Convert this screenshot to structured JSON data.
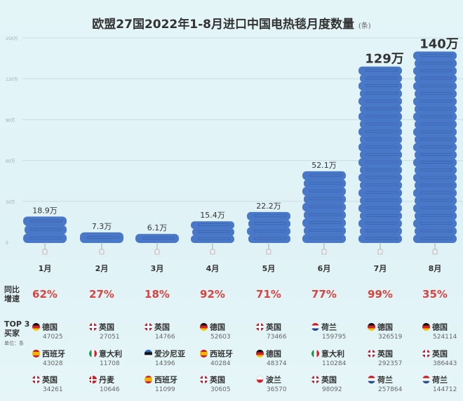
{
  "chart_data": {
    "type": "bar",
    "title": "欧盟27国2022年1-8月进口中国电热毯月度数量",
    "title_unit": "(条)",
    "categories": [
      "1月",
      "2月",
      "3月",
      "4月",
      "5月",
      "6月",
      "7月",
      "8月"
    ],
    "values": [
      18.9,
      7.3,
      6.1,
      15.4,
      22.2,
      52.1,
      129,
      140
    ],
    "value_labels": [
      "18.9万",
      "7.3万",
      "6.1万",
      "15.4万",
      "22.2万",
      "52.1万",
      "129万",
      "140万"
    ],
    "unit": "万",
    "ylim": [
      0,
      150
    ],
    "yticks": [
      0,
      30,
      60,
      90,
      120,
      150
    ],
    "ytick_labels": [
      "0",
      "30万",
      "60万",
      "90万",
      "120万",
      "150万"
    ],
    "grid": true,
    "bar_color": "#4a78c8",
    "yoy_label": [
      "同比",
      "增速"
    ],
    "yoy_growth": [
      "62%",
      "27%",
      "18%",
      "92%",
      "71%",
      "77%",
      "99%",
      "35%"
    ],
    "yoy_color": "#d8453f"
  },
  "buyers": {
    "label": [
      "TOP 3",
      "买家"
    ],
    "unit": "单位：条",
    "rows": [
      [
        {
          "name": "德国",
          "flag": "de",
          "value": "47025"
        },
        {
          "name": "英国",
          "flag": "gb",
          "value": "27051"
        },
        {
          "name": "英国",
          "flag": "gb",
          "value": "14766"
        },
        {
          "name": "德国",
          "flag": "de",
          "value": "52603"
        },
        {
          "name": "英国",
          "flag": "gb",
          "value": "73466"
        },
        {
          "name": "荷兰",
          "flag": "nl",
          "value": "159795"
        },
        {
          "name": "德国",
          "flag": "de",
          "value": "326519"
        },
        {
          "name": "德国",
          "flag": "de",
          "value": "524114"
        }
      ],
      [
        {
          "name": "西班牙",
          "flag": "es",
          "value": "43028"
        },
        {
          "name": "意大利",
          "flag": "it",
          "value": "11708"
        },
        {
          "name": "爱沙尼亚",
          "flag": "ee",
          "value": "14396"
        },
        {
          "name": "西班牙",
          "flag": "es",
          "value": "40284"
        },
        {
          "name": "德国",
          "flag": "de",
          "value": "48374"
        },
        {
          "name": "意大利",
          "flag": "it",
          "value": "110284"
        },
        {
          "name": "英国",
          "flag": "gb",
          "value": "292357"
        },
        {
          "name": "英国",
          "flag": "gb",
          "value": "386443"
        }
      ],
      [
        {
          "name": "英国",
          "flag": "gb",
          "value": "34261"
        },
        {
          "name": "丹麦",
          "flag": "dk",
          "value": "10646"
        },
        {
          "name": "西班牙",
          "flag": "es",
          "value": "11099"
        },
        {
          "name": "英国",
          "flag": "gb",
          "value": "30605"
        },
        {
          "name": "波兰",
          "flag": "pl",
          "value": "36570"
        },
        {
          "name": "英国",
          "flag": "gb",
          "value": "98092"
        },
        {
          "name": "荷兰",
          "flag": "nl",
          "value": "257864"
        },
        {
          "name": "荷兰",
          "flag": "nl",
          "value": "144712"
        }
      ]
    ]
  }
}
